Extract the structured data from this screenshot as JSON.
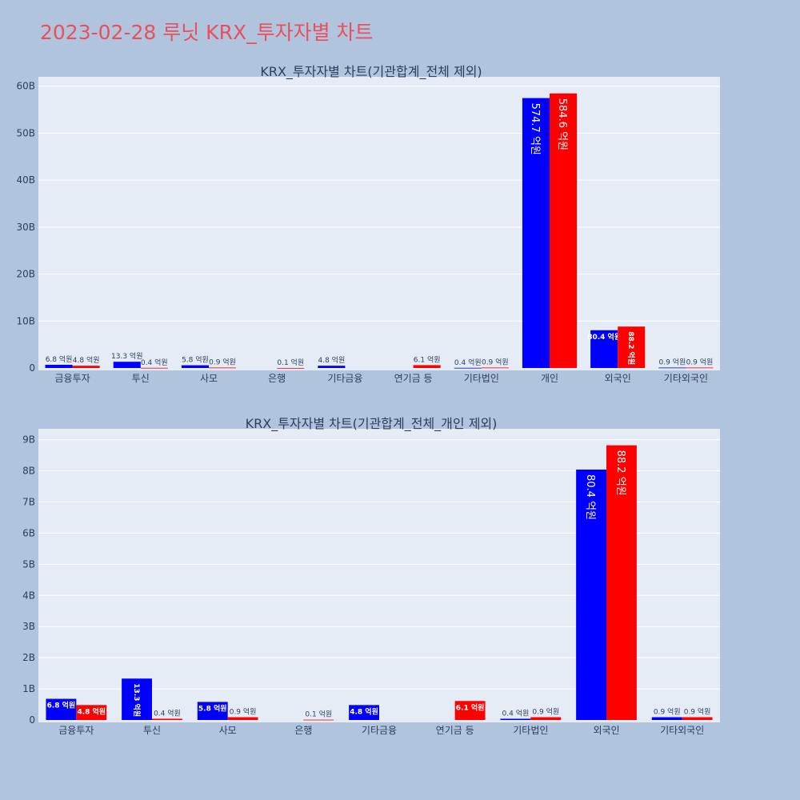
{
  "page_title": "2023-02-28 루닛 KRX_투자자별 차트",
  "colors": {
    "background": "#b0c4de",
    "plot_bg": "#e5ecf6",
    "sell": "#0000ff",
    "buy": "#ff0000",
    "title": "#e8505b"
  },
  "chart_data": [
    {
      "type": "bar",
      "title": "KRX_투자자별 차트(기관합계_전체 제외)",
      "categories": [
        "금융투자",
        "투신",
        "사모",
        "은행",
        "기타금융",
        "연기금 등",
        "기타법인",
        "개인",
        "외국인",
        "기타외국인"
      ],
      "series": [
        {
          "color": "#0000ff",
          "values": [
            680000000,
            1330000000,
            580000000,
            0,
            480000000,
            0,
            40000000,
            57470000000,
            8040000000,
            90000000
          ],
          "labels": [
            "6.8 억원",
            "13.3 억원",
            "5.8 억원",
            "",
            "4.8 억원",
            "",
            "0.4 억원",
            "574.7 억원",
            "80.4 억원",
            "0.9 억원"
          ]
        },
        {
          "color": "#ff0000",
          "values": [
            480000000,
            40000000,
            90000000,
            10000000,
            0,
            610000000,
            90000000,
            58460000000,
            8820000000,
            90000000
          ],
          "labels": [
            "4.8 억원",
            "0.4 억원",
            "0.9 억원",
            "0.1 억원",
            "",
            "6.1 억원",
            "0.9 억원",
            "584.6 억원",
            "88.2 억원",
            "0.9 억원"
          ]
        }
      ],
      "ylim": [
        0,
        62000000000
      ],
      "yticks": [
        0,
        10000000000,
        20000000000,
        30000000000,
        40000000000,
        50000000000,
        60000000000
      ],
      "ytick_labels": [
        "0",
        "10B",
        "20B",
        "30B",
        "40B",
        "50B",
        "60B"
      ],
      "grid": true
    },
    {
      "type": "bar",
      "title": "KRX_투자자별 차트(기관합계_전체_개인 제외)",
      "categories": [
        "금융투자",
        "투신",
        "사모",
        "은행",
        "기타금융",
        "연기금 등",
        "기타법인",
        "외국인",
        "기타외국인"
      ],
      "series": [
        {
          "color": "#0000ff",
          "values": [
            680000000,
            1330000000,
            580000000,
            0,
            480000000,
            0,
            40000000,
            8040000000,
            90000000
          ],
          "labels": [
            "6.8 억원",
            "13.3 억원",
            "5.8 억원",
            "",
            "4.8 억원",
            "",
            "0.4 억원",
            "80.4 억원",
            "0.9 억원"
          ]
        },
        {
          "color": "#ff0000",
          "values": [
            480000000,
            40000000,
            90000000,
            10000000,
            0,
            610000000,
            90000000,
            8820000000,
            90000000
          ],
          "labels": [
            "4.8 억원",
            "0.4 억원",
            "0.9 억원",
            "0.1 억원",
            "",
            "6.1 억원",
            "0.9 억원",
            "88.2 억원",
            "0.9 억원"
          ]
        }
      ],
      "ylim": [
        0,
        9350000000
      ],
      "yticks": [
        0,
        1000000000,
        2000000000,
        3000000000,
        4000000000,
        5000000000,
        6000000000,
        7000000000,
        8000000000,
        9000000000
      ],
      "ytick_labels": [
        "0",
        "1B",
        "2B",
        "3B",
        "4B",
        "5B",
        "6B",
        "7B",
        "8B",
        "9B"
      ],
      "grid": true
    }
  ]
}
